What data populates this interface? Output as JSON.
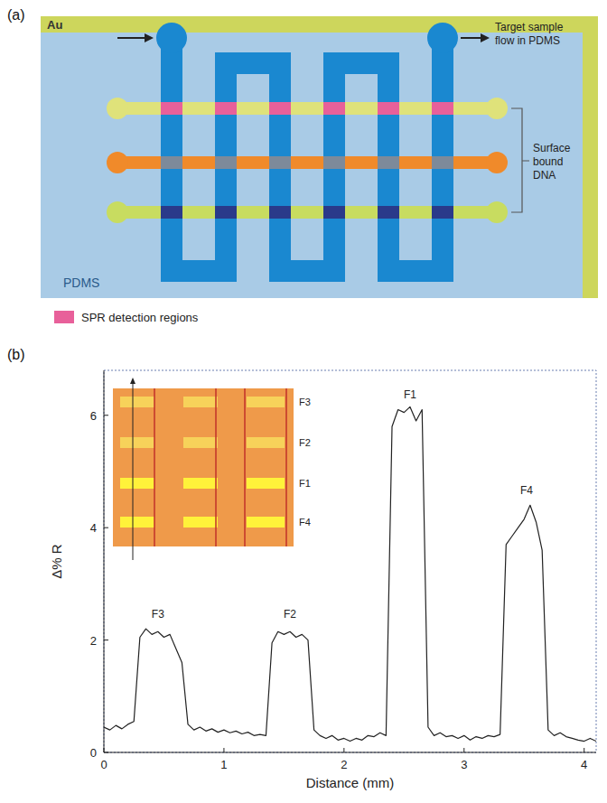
{
  "panel_a": {
    "label": "(a)",
    "au_label": "Au",
    "flow_label": "Target sample flow in PDMS",
    "dna_label": "Surface bound DNA",
    "pdms_label": "PDMS",
    "legend_label": "SPR detection regions"
  },
  "chart_data": {
    "type": "line",
    "panel_label": "(b)",
    "xlabel": "Distance (mm)",
    "ylabel": "Δ% R",
    "x": [
      0,
      0.05,
      0.1,
      0.15,
      0.2,
      0.25,
      0.3,
      0.35,
      0.4,
      0.45,
      0.5,
      0.55,
      0.6,
      0.65,
      0.7,
      0.75,
      0.8,
      0.85,
      0.9,
      0.95,
      1,
      1.05,
      1.1,
      1.15,
      1.2,
      1.25,
      1.3,
      1.35,
      1.4,
      1.45,
      1.5,
      1.55,
      1.6,
      1.65,
      1.7,
      1.75,
      1.8,
      1.85,
      1.9,
      1.95,
      2,
      2.05,
      2.1,
      2.15,
      2.2,
      2.25,
      2.3,
      2.35,
      2.4,
      2.45,
      2.5,
      2.55,
      2.6,
      2.65,
      2.7,
      2.75,
      2.8,
      2.85,
      2.9,
      2.95,
      3,
      3.05,
      3.1,
      3.15,
      3.2,
      3.25,
      3.3,
      3.35,
      3.4,
      3.45,
      3.5,
      3.55,
      3.6,
      3.65,
      3.7,
      3.75,
      3.8,
      3.85,
      3.9,
      3.95,
      4,
      4.05,
      4.1
    ],
    "values": [
      0.45,
      0.4,
      0.48,
      0.42,
      0.5,
      0.55,
      2.05,
      2.2,
      2.1,
      2.15,
      2.05,
      2.1,
      1.85,
      1.6,
      0.5,
      0.4,
      0.45,
      0.38,
      0.42,
      0.36,
      0.4,
      0.35,
      0.38,
      0.33,
      0.36,
      0.3,
      0.32,
      0.3,
      1.95,
      2.15,
      2.1,
      2.15,
      2.05,
      2.1,
      2.0,
      0.4,
      0.3,
      0.25,
      0.3,
      0.22,
      0.25,
      0.2,
      0.25,
      0.22,
      0.3,
      0.28,
      0.35,
      0.3,
      5.8,
      6.1,
      6.05,
      6.15,
      5.9,
      6.1,
      0.45,
      0.3,
      0.35,
      0.28,
      0.3,
      0.25,
      0.3,
      0.22,
      0.28,
      0.25,
      0.3,
      0.28,
      0.32,
      3.7,
      3.85,
      4.0,
      4.15,
      4.4,
      4.1,
      3.6,
      0.4,
      0.3,
      0.35,
      0.28,
      0.25,
      0.22,
      0.2,
      0.25,
      0.2
    ],
    "color": "#222222",
    "xlim": [
      0,
      4.1
    ],
    "ylim": [
      0,
      6.8
    ],
    "xticks": [
      0,
      1,
      2,
      3,
      4
    ],
    "yticks": [
      0,
      2,
      4,
      6
    ],
    "grid": false,
    "annotations": [
      {
        "text": "F3",
        "x": 0.45,
        "y": 2.4
      },
      {
        "text": "F2",
        "x": 1.55,
        "y": 2.4
      },
      {
        "text": "F1",
        "x": 2.55,
        "y": 6.3
      },
      {
        "text": "F4",
        "x": 3.52,
        "y": 4.6
      }
    ],
    "inset_labels": [
      "F3",
      "F2",
      "F1",
      "F4"
    ]
  }
}
